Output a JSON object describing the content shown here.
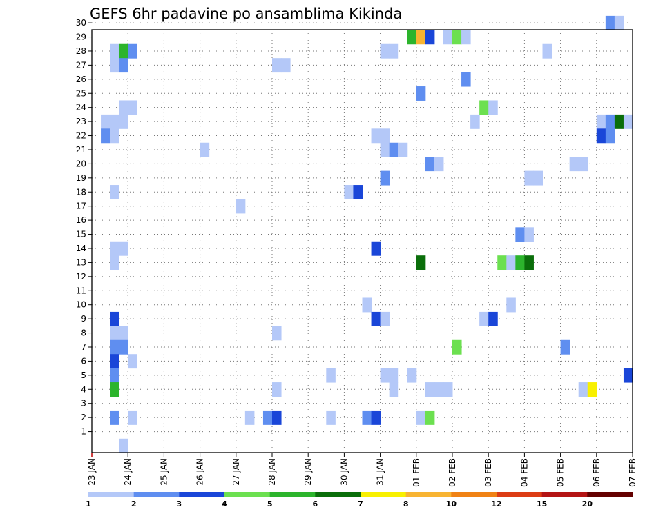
{
  "chart_data": {
    "type": "heatmap",
    "title": "GEFS 6hr padavine po ansamblima Kikinda",
    "xlabel": "",
    "ylabel": "",
    "x_ticks": [
      "23 JAN",
      "24 JAN",
      "25 JAN",
      "26 JAN",
      "27 JAN",
      "28 JAN",
      "29 JAN",
      "30 JAN",
      "31 JAN",
      "01 FEB",
      "02 FEB",
      "03 FEB",
      "04 FEB",
      "05 FEB",
      "06 FEB",
      "07 FEB"
    ],
    "y_ticks": [
      1,
      2,
      3,
      4,
      5,
      6,
      7,
      8,
      9,
      10,
      11,
      12,
      13,
      14,
      15,
      16,
      17,
      18,
      19,
      20,
      21,
      22,
      23,
      24,
      25,
      26,
      27,
      28,
      29,
      30
    ],
    "ylim": [
      0,
      30
    ],
    "x_unit": "6h steps from 23 JAN 00Z",
    "grid": true,
    "colorbar": {
      "levels": [
        "1",
        "2",
        "3",
        "4",
        "5",
        "6",
        "7",
        "8",
        "10",
        "12",
        "15",
        "20"
      ],
      "colors": [
        "#b4c8f8",
        "#5f8ef0",
        "#1a46d8",
        "#6ce050",
        "#2cb42c",
        "#0a6e0a",
        "#f8f000",
        "#f8b432",
        "#f08214",
        "#dc3c14",
        "#b41414",
        "#640000"
      ]
    },
    "cells": [
      [
        2,
        28,
        1
      ],
      [
        3,
        28,
        5
      ],
      [
        4,
        28,
        2
      ],
      [
        2,
        27,
        1
      ],
      [
        3,
        27,
        2
      ],
      [
        3,
        24,
        1
      ],
      [
        4,
        24,
        1
      ],
      [
        1,
        23,
        1
      ],
      [
        2,
        23,
        1
      ],
      [
        3,
        23,
        1
      ],
      [
        1,
        22,
        2
      ],
      [
        2,
        22,
        1
      ],
      [
        2,
        18,
        1
      ],
      [
        2,
        14,
        1
      ],
      [
        3,
        14,
        1
      ],
      [
        2,
        13,
        1
      ],
      [
        2,
        9,
        3
      ],
      [
        2,
        8,
        1
      ],
      [
        3,
        8,
        1
      ],
      [
        2,
        7,
        2
      ],
      [
        3,
        7,
        2
      ],
      [
        2,
        6,
        3
      ],
      [
        4,
        6,
        1
      ],
      [
        2,
        5,
        2
      ],
      [
        2,
        4,
        5
      ],
      [
        2,
        2,
        2
      ],
      [
        4,
        2,
        1
      ],
      [
        3,
        0,
        1
      ],
      [
        12,
        21,
        1
      ],
      [
        16,
        17,
        1
      ],
      [
        20,
        27,
        1
      ],
      [
        21,
        27,
        1
      ],
      [
        20,
        8,
        1
      ],
      [
        20,
        4,
        1
      ],
      [
        17,
        2,
        1
      ],
      [
        19,
        2,
        2
      ],
      [
        20,
        2,
        3
      ],
      [
        26,
        5,
        1
      ],
      [
        26,
        2,
        1
      ],
      [
        28,
        18,
        1
      ],
      [
        29,
        18,
        3
      ],
      [
        30,
        10,
        1
      ],
      [
        30,
        2,
        2
      ],
      [
        31,
        2,
        3
      ],
      [
        31,
        14,
        3
      ],
      [
        31,
        9,
        3
      ],
      [
        32,
        9,
        1
      ],
      [
        31,
        22,
        1
      ],
      [
        32,
        22,
        1
      ],
      [
        32,
        21,
        1
      ],
      [
        33,
        21,
        2
      ],
      [
        34,
        21,
        1
      ],
      [
        32,
        28,
        1
      ],
      [
        33,
        28,
        1
      ],
      [
        32,
        19,
        2
      ],
      [
        32,
        5,
        1
      ],
      [
        33,
        5,
        1
      ],
      [
        33,
        4,
        1
      ],
      [
        35,
        5,
        1
      ],
      [
        35,
        29,
        5
      ],
      [
        36,
        29,
        8
      ],
      [
        37,
        29,
        3
      ],
      [
        36,
        25,
        2
      ],
      [
        36,
        13,
        6
      ],
      [
        36,
        2,
        1
      ],
      [
        37,
        2,
        4
      ],
      [
        37,
        20,
        2
      ],
      [
        38,
        20,
        1
      ],
      [
        37,
        4,
        1
      ],
      [
        38,
        4,
        1
      ],
      [
        39,
        4,
        1
      ],
      [
        39,
        29,
        1
      ],
      [
        40,
        29,
        4
      ],
      [
        41,
        29,
        1
      ],
      [
        40,
        7,
        4
      ],
      [
        41,
        26,
        2
      ],
      [
        42,
        23,
        1
      ],
      [
        43,
        24,
        4
      ],
      [
        44,
        24,
        1
      ],
      [
        43,
        9,
        1
      ],
      [
        44,
        9,
        3
      ],
      [
        45,
        13,
        4
      ],
      [
        46,
        13,
        1
      ],
      [
        47,
        13,
        5
      ],
      [
        48,
        13,
        6
      ],
      [
        47,
        15,
        2
      ],
      [
        48,
        15,
        1
      ],
      [
        46,
        10,
        1
      ],
      [
        48,
        19,
        1
      ],
      [
        49,
        19,
        1
      ],
      [
        50,
        28,
        1
      ],
      [
        52,
        7,
        2
      ],
      [
        53,
        20,
        1
      ],
      [
        54,
        20,
        1
      ],
      [
        54,
        4,
        1
      ],
      [
        55,
        4,
        7
      ],
      [
        56,
        23,
        1
      ],
      [
        57,
        23,
        2
      ],
      [
        58,
        23,
        6
      ],
      [
        59,
        23,
        1
      ],
      [
        56,
        22,
        3
      ],
      [
        57,
        22,
        2
      ],
      [
        57,
        30,
        2
      ],
      [
        58,
        30,
        1
      ],
      [
        59,
        5,
        3
      ]
    ]
  }
}
